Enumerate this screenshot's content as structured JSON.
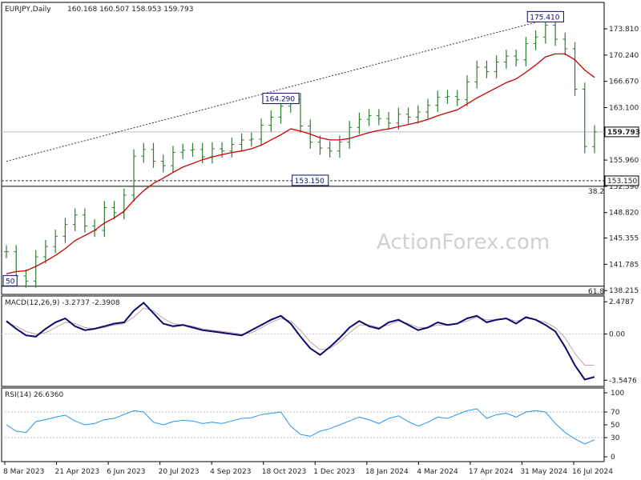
{
  "header": {
    "symbol": "EURJPY,Daily",
    "ohlc": "160.168 160.507 158.953 159.793"
  },
  "watermark": "ActionForex.com",
  "colors": {
    "price_bar": "#2e7d32",
    "sma": "#cc0000",
    "macd_line": "#0a0a6e",
    "macd_signal": "#c8a0a0",
    "rsi": "#2196f3",
    "trendline": "#333333",
    "level_line": "#333333"
  },
  "chart_data": [
    {
      "type": "candlestick",
      "panel": "price",
      "y_ticks": [
        "173.810",
        "170.240",
        "166.670",
        "163.100",
        "159.960",
        "155.960",
        "152.390",
        "148.820",
        "145.355",
        "141.785",
        "138.215"
      ],
      "ylim": [
        137.8,
        177.3
      ],
      "x_ticks": [
        "8 Mar 2023",
        "21 Apr 2023",
        "6 Jun 2023",
        "20 Jul 2023",
        "4 Sep 2023",
        "18 Oct 2023",
        "1 Dec 2023",
        "18 Jan 2024",
        "4 Mar 2024",
        "17 Apr 2024",
        "31 May 2024",
        "16 Jul 2024"
      ],
      "current_price_label": "159.793",
      "current_price": 159.793,
      "level_label": "153.150",
      "level": 153.15,
      "fib_labels": [
        {
          "text": "38.2",
          "price": 152.4
        },
        {
          "text": "61.8",
          "price": 138.8
        }
      ],
      "annotations": [
        {
          "text": "175.410",
          "price": 175.41,
          "anchor_index": 55
        },
        {
          "text": "164.290",
          "price": 164.29,
          "anchor_index": 28
        },
        {
          "text": "153.150",
          "price": 153.15,
          "anchor_index": 31
        },
        {
          "text": "50",
          "price": 139.5,
          "anchor_index": 0
        }
      ],
      "series": [
        {
          "name": "Close (weekly approx.)",
          "values": [
            143.5,
            140.2,
            139.5,
            142.8,
            144.2,
            145.6,
            147.2,
            148.5,
            147.0,
            146.4,
            149.5,
            148.8,
            151.2,
            156.5,
            157.4,
            155.8,
            155.2,
            157.0,
            157.3,
            157.4,
            156.4,
            157.5,
            157.2,
            158.1,
            158.7,
            158.8,
            160.7,
            161.8,
            163.3,
            164.2,
            160.6,
            158.4,
            157.6,
            157.2,
            158.4,
            160.4,
            161.5,
            162.0,
            161.6,
            161.0,
            162.2,
            161.8,
            162.5,
            163.4,
            164.5,
            164.6,
            164.2,
            166.6,
            168.6,
            168.0,
            169.3,
            170.1,
            169.6,
            171.8,
            172.7,
            174.3,
            172.4,
            171.1,
            165.6,
            157.8,
            159.8
          ]
        },
        {
          "name": "SMA",
          "values": [
            140.5,
            140.8,
            140.9,
            141.5,
            142.2,
            143.0,
            143.9,
            145.0,
            145.7,
            146.4,
            147.4,
            148.1,
            149.0,
            150.5,
            151.8,
            152.8,
            153.5,
            154.3,
            155.0,
            155.5,
            156.0,
            156.4,
            156.7,
            157.0,
            157.2,
            157.5,
            158.0,
            158.7,
            159.4,
            160.2,
            159.9,
            159.5,
            159.0,
            158.7,
            158.7,
            158.9,
            159.3,
            159.7,
            160.0,
            160.2,
            160.5,
            160.8,
            161.1,
            161.5,
            162.0,
            162.4,
            162.8,
            163.6,
            164.4,
            165.1,
            165.8,
            166.5,
            167.0,
            167.9,
            168.9,
            170.0,
            170.4,
            170.4,
            169.6,
            168.2,
            167.2
          ]
        }
      ],
      "trendline": {
        "from": {
          "index": 0,
          "price": 155.8
        },
        "to": {
          "index": 56,
          "price": 175.4
        }
      }
    },
    {
      "type": "line",
      "panel": "macd",
      "title": "MACD(12,26,9) -3.2737 -2.3908",
      "y_ticks": [
        "2.4787",
        "0.00",
        "-3.5476"
      ],
      "ylim": [
        -3.9,
        2.8
      ],
      "series": [
        {
          "name": "MACD",
          "values": [
            1.0,
            0.4,
            -0.1,
            -0.2,
            0.4,
            0.9,
            1.2,
            0.6,
            0.3,
            0.4,
            0.6,
            0.8,
            0.9,
            1.8,
            2.4,
            1.6,
            0.8,
            0.6,
            0.7,
            0.5,
            0.3,
            0.2,
            0.1,
            0.0,
            -0.1,
            0.3,
            0.7,
            1.1,
            1.4,
            0.8,
            -0.2,
            -1.1,
            -1.6,
            -1.0,
            -0.3,
            0.5,
            1.0,
            0.6,
            0.4,
            0.9,
            1.1,
            0.7,
            0.3,
            0.5,
            0.9,
            0.7,
            0.8,
            1.2,
            1.4,
            0.9,
            1.1,
            1.2,
            0.8,
            1.3,
            1.1,
            0.7,
            0.2,
            -1.0,
            -2.4,
            -3.5,
            -3.3
          ]
        },
        {
          "name": "Signal",
          "values": [
            0.9,
            0.6,
            0.2,
            0.0,
            0.1,
            0.5,
            0.9,
            0.8,
            0.5,
            0.4,
            0.5,
            0.7,
            0.8,
            1.3,
            2.0,
            1.8,
            1.2,
            0.8,
            0.7,
            0.6,
            0.4,
            0.3,
            0.2,
            0.1,
            0.0,
            0.1,
            0.5,
            0.9,
            1.2,
            1.0,
            0.3,
            -0.6,
            -1.2,
            -1.1,
            -0.6,
            0.1,
            0.7,
            0.7,
            0.5,
            0.7,
            1.0,
            0.8,
            0.5,
            0.5,
            0.7,
            0.7,
            0.8,
            1.0,
            1.3,
            1.1,
            1.1,
            1.2,
            1.0,
            1.2,
            1.1,
            0.9,
            0.5,
            -0.3,
            -1.5,
            -2.4,
            -2.39
          ]
        }
      ]
    },
    {
      "type": "line",
      "panel": "rsi",
      "title": "RSI(14) 26.6360",
      "y_ticks": [
        "100",
        "70",
        "50",
        "30",
        "0"
      ],
      "ylim": [
        -5,
        105
      ],
      "series": [
        {
          "name": "RSI",
          "values": [
            50,
            40,
            38,
            55,
            58,
            62,
            65,
            56,
            50,
            52,
            58,
            60,
            66,
            72,
            70,
            54,
            50,
            55,
            57,
            56,
            52,
            54,
            52,
            56,
            60,
            61,
            66,
            68,
            70,
            48,
            35,
            32,
            40,
            44,
            50,
            56,
            62,
            58,
            52,
            60,
            64,
            55,
            48,
            54,
            62,
            60,
            66,
            72,
            75,
            60,
            66,
            68,
            62,
            70,
            72,
            70,
            52,
            38,
            28,
            20,
            26.6
          ]
        }
      ]
    }
  ]
}
